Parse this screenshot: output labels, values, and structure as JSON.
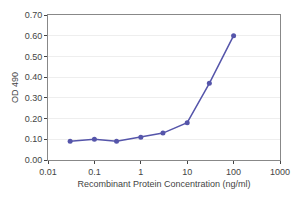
{
  "chart_data": {
    "type": "line",
    "x": [
      0.03,
      0.1,
      0.3,
      1,
      3,
      10,
      30,
      100
    ],
    "values": [
      0.09,
      0.1,
      0.09,
      0.11,
      0.13,
      0.18,
      0.37,
      0.6
    ],
    "color": "#5555aa",
    "marker": "circle",
    "xlabel": "Recombinant Protein Concentration (ng/ml)",
    "ylabel": "OD 490",
    "log": "x",
    "xlim": [
      0.01,
      1000
    ],
    "xticks": [
      0.01,
      0.1,
      1,
      10,
      100,
      1000
    ],
    "ylim": [
      0.0,
      0.7
    ],
    "yticks": [
      {
        "value": 0.0,
        "label": "0.00"
      },
      {
        "value": 0.1,
        "label": "0.10"
      },
      {
        "value": 0.2,
        "label": "0.20"
      },
      {
        "value": 0.3,
        "label": "0.30"
      },
      {
        "value": 0.4,
        "label": "0.40"
      },
      {
        "value": 0.5,
        "label": "0.50"
      },
      {
        "value": 0.6,
        "label": "0.60"
      },
      {
        "value": 0.7,
        "label": "0.70"
      }
    ],
    "grid": "y"
  }
}
